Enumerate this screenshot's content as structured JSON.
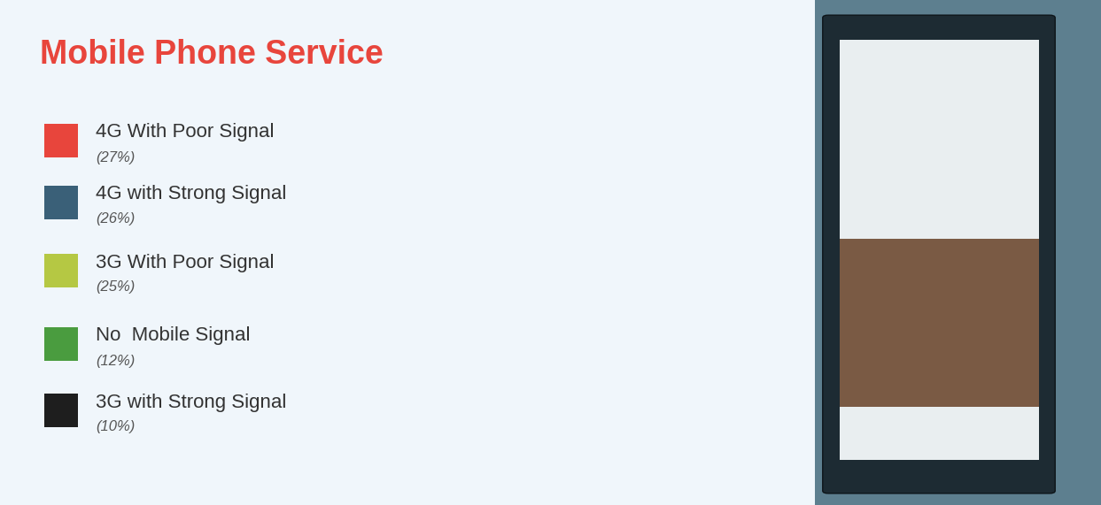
{
  "chart_data": {
    "type": "pie",
    "title": "Mobile Phone Service",
    "categories": [
      "4G With Poor Signal",
      "4G with Strong Signal",
      "3G With Poor Signal",
      "No  Mobile Signal",
      "3G with Strong Signal"
    ],
    "values": [
      27,
      26,
      25,
      12,
      10
    ],
    "value_labels": [
      "(27%)",
      "(26%)",
      "(25%)",
      "(12%)",
      "(10%)"
    ],
    "colors": [
      "#e8453c",
      "#3a6078",
      "#b5c843",
      "#4a9c3f",
      "#1e1e1e"
    ],
    "legend": "left"
  }
}
